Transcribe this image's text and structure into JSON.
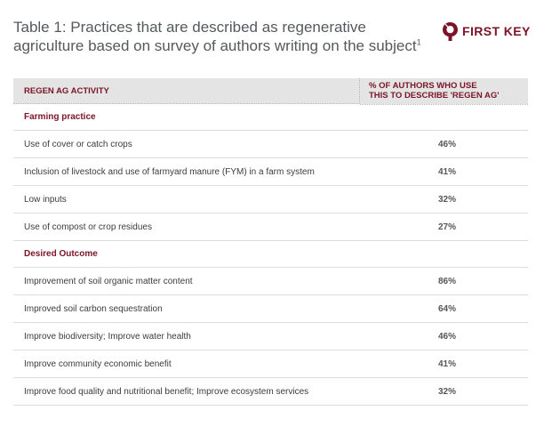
{
  "title": {
    "line1": "Table 1: Practices that  are described as regenerative",
    "line2": "agriculture based on survey of authors writing on the subject",
    "footnote_mark": "1"
  },
  "logo": {
    "text": "FIRST KEY",
    "icon": "first-key-logo-icon",
    "color": "#7b1428"
  },
  "table": {
    "headers": {
      "activity": "REGEN AG ACTIVITY",
      "percent_line1": "% OF AUTHORS WHO USE",
      "percent_line2": "THIS TO DESCRIBE 'REGEN AG'"
    },
    "sections": [
      {
        "name": "Farming practice",
        "rows": [
          {
            "activity": "Use of cover or catch crops",
            "percent": "46%"
          },
          {
            "activity": "Inclusion of livestock and use of farmyard manure (FYM) in a farm system",
            "percent": "41%"
          },
          {
            "activity": "Low inputs",
            "percent": "32%"
          },
          {
            "activity": "Use of compost or crop residues",
            "percent": "27%"
          }
        ]
      },
      {
        "name": "Desired Outcome",
        "rows": [
          {
            "activity": "Improvement of soil organic matter content",
            "percent": "86%"
          },
          {
            "activity": "Improved soil carbon sequestration",
            "percent": "64%"
          },
          {
            "activity": "Improve biodiversity; Improve water health",
            "percent": "46%"
          },
          {
            "activity": "Improve community economic benefit",
            "percent": "41%"
          },
          {
            "activity": "Improve food quality and nutritional benefit; Improve ecosystem services",
            "percent": "32%"
          }
        ]
      }
    ]
  }
}
